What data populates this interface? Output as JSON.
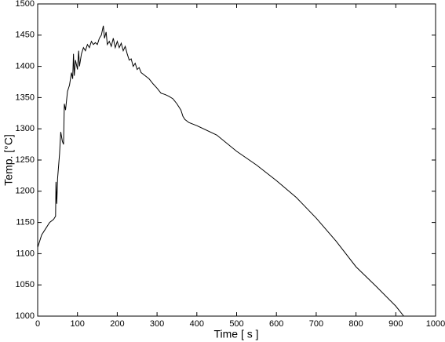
{
  "chart_data": {
    "type": "line",
    "xlabel": "Time [ s ]",
    "ylabel": "Temp. [°C]",
    "x": [
      0,
      10,
      20,
      30,
      40,
      45,
      46,
      48,
      50,
      55,
      58,
      62,
      65,
      67,
      70,
      75,
      80,
      85,
      88,
      90,
      92,
      95,
      100,
      103,
      105,
      110,
      115,
      120,
      125,
      130,
      135,
      140,
      145,
      150,
      155,
      160,
      165,
      168,
      172,
      175,
      180,
      185,
      190,
      195,
      200,
      205,
      210,
      215,
      220,
      225,
      230,
      235,
      240,
      245,
      250,
      255,
      260,
      270,
      280,
      290,
      300,
      310,
      320,
      330,
      340,
      350,
      360,
      365,
      370,
      380,
      400,
      450,
      500,
      550,
      600,
      650,
      700,
      750,
      800,
      850,
      900,
      920
    ],
    "series": [
      {
        "name": "Temp",
        "color": "#000000",
        "values": [
          1110,
          1130,
          1140,
          1150,
          1155,
          1160,
          1215,
          1180,
          1220,
          1260,
          1295,
          1280,
          1275,
          1340,
          1330,
          1360,
          1370,
          1390,
          1380,
          1420,
          1385,
          1410,
          1395,
          1425,
          1400,
          1420,
          1430,
          1425,
          1435,
          1430,
          1440,
          1435,
          1438,
          1435,
          1445,
          1450,
          1465,
          1445,
          1455,
          1435,
          1440,
          1432,
          1445,
          1430,
          1440,
          1430,
          1437,
          1425,
          1432,
          1420,
          1410,
          1412,
          1400,
          1405,
          1395,
          1398,
          1390,
          1385,
          1380,
          1372,
          1365,
          1357,
          1355,
          1352,
          1348,
          1340,
          1330,
          1320,
          1315,
          1310,
          1305,
          1290,
          1264,
          1242,
          1217,
          1190,
          1157,
          1120,
          1079,
          1048,
          1016,
          1000
        ]
      }
    ],
    "xlim": [
      0,
      1000
    ],
    "ylim": [
      1000,
      1500
    ],
    "xticks": [
      0,
      100,
      200,
      300,
      400,
      500,
      600,
      700,
      800,
      900,
      1000
    ],
    "yticks": [
      1000,
      1050,
      1100,
      1150,
      1200,
      1250,
      1300,
      1350,
      1400,
      1450,
      1500
    ]
  }
}
